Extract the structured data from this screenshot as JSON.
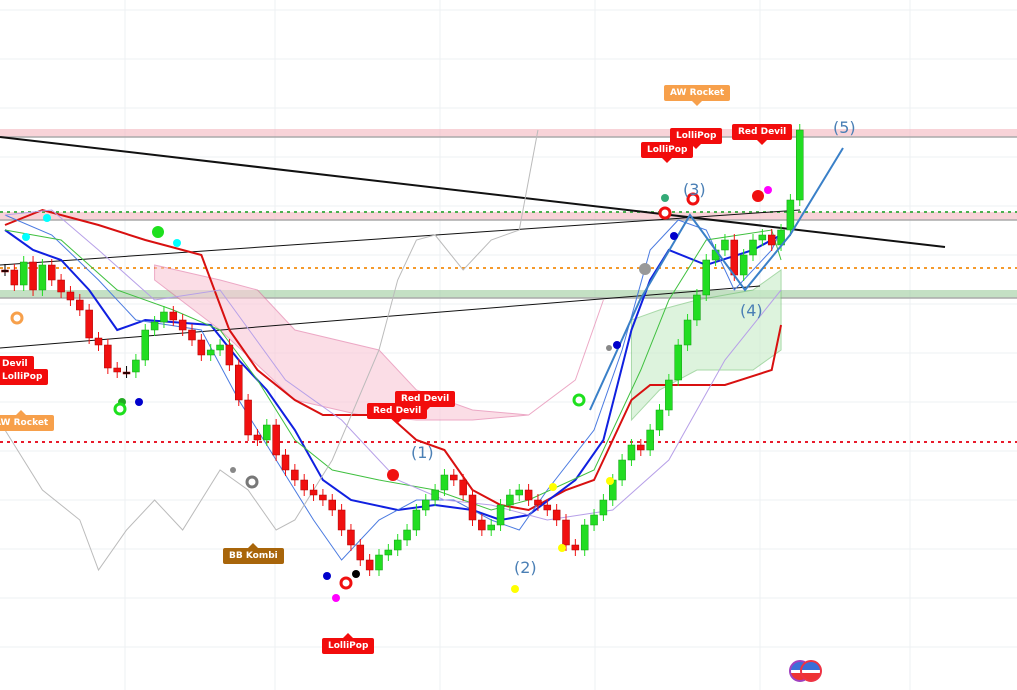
{
  "chart_data": {
    "type": "candlestick",
    "xlabel": "",
    "ylabel": "",
    "grid": true,
    "first_open": 430,
    "closes": [
      430,
      415,
      438,
      410,
      435,
      420,
      408,
      400,
      390,
      362,
      355,
      332,
      328,
      328,
      340,
      370,
      378,
      388,
      380,
      370,
      360,
      345,
      350,
      355,
      335,
      300,
      265,
      260,
      275,
      245,
      230,
      220,
      210,
      205,
      200,
      190,
      170,
      155,
      140,
      130,
      145,
      150,
      160,
      170,
      190,
      200,
      210,
      225,
      220,
      205,
      180,
      170,
      175,
      195,
      205,
      210,
      200,
      195,
      190,
      180,
      155,
      150,
      175,
      185,
      200,
      220,
      240,
      255,
      250,
      270,
      290,
      320,
      355,
      380,
      405,
      440,
      450,
      460,
      425,
      445,
      460,
      465,
      455,
      470,
      500,
      570
    ],
    "series": [
      {
        "color": "#d81010",
        "points": [
          [
            0,
            475
          ],
          [
            4,
            490
          ],
          [
            10,
            475
          ],
          [
            15,
            460
          ],
          [
            21,
            445
          ],
          [
            24,
            370
          ],
          [
            27,
            330
          ],
          [
            31,
            300
          ],
          [
            34,
            285
          ],
          [
            41,
            285
          ],
          [
            44,
            260
          ],
          [
            47,
            250
          ],
          [
            50,
            210
          ],
          [
            53,
            195
          ],
          [
            56,
            190
          ],
          [
            60,
            210
          ],
          [
            63,
            220
          ],
          [
            65,
            260
          ],
          [
            67,
            300
          ],
          [
            69,
            315
          ],
          [
            77,
            315
          ],
          [
            82,
            330
          ],
          [
            83,
            375
          ]
        ]
      },
      {
        "color": "#1020e0",
        "points": [
          [
            0,
            470
          ],
          [
            3,
            450
          ],
          [
            6,
            440
          ],
          [
            9,
            410
          ],
          [
            12,
            370
          ],
          [
            15,
            380
          ],
          [
            22,
            375
          ],
          [
            25,
            340
          ],
          [
            28,
            310
          ],
          [
            31,
            270
          ],
          [
            34,
            220
          ],
          [
            37,
            200
          ],
          [
            42,
            190
          ],
          [
            46,
            195
          ],
          [
            50,
            190
          ],
          [
            53,
            180
          ],
          [
            56,
            185
          ],
          [
            61,
            220
          ],
          [
            64,
            260
          ],
          [
            67,
            370
          ],
          [
            69,
            420
          ],
          [
            71,
            450
          ],
          [
            75,
            435
          ],
          [
            80,
            450
          ],
          [
            83,
            465
          ]
        ]
      },
      {
        "color": "#4a7ae0",
        "points": [
          [
            0,
            485
          ],
          [
            5,
            465
          ],
          [
            10,
            420
          ],
          [
            14,
            380
          ],
          [
            21,
            370
          ],
          [
            25,
            300
          ],
          [
            29,
            240
          ],
          [
            33,
            180
          ],
          [
            36,
            140
          ],
          [
            40,
            180
          ],
          [
            44,
            200
          ],
          [
            48,
            200
          ],
          [
            52,
            180
          ],
          [
            55,
            170
          ],
          [
            58,
            210
          ],
          [
            63,
            270
          ],
          [
            66,
            350
          ],
          [
            69,
            450
          ],
          [
            72,
            480
          ],
          [
            75,
            470
          ],
          [
            78,
            410
          ],
          [
            82,
            450
          ],
          [
            83,
            470
          ]
        ]
      },
      {
        "color": "#40c040",
        "points": [
          [
            0,
            470
          ],
          [
            6,
            460
          ],
          [
            12,
            410
          ],
          [
            18,
            390
          ],
          [
            23,
            370
          ],
          [
            27,
            320
          ],
          [
            31,
            260
          ],
          [
            35,
            230
          ],
          [
            40,
            220
          ],
          [
            46,
            210
          ],
          [
            52,
            190
          ],
          [
            56,
            200
          ],
          [
            63,
            230
          ],
          [
            65,
            270
          ],
          [
            68,
            330
          ],
          [
            71,
            400
          ],
          [
            75,
            460
          ],
          [
            82,
            470
          ],
          [
            83,
            440
          ]
        ]
      },
      {
        "color": "#b7a0e8",
        "points": [
          [
            0,
            485
          ],
          [
            5,
            490
          ],
          [
            10,
            450
          ],
          [
            16,
            400
          ],
          [
            23,
            410
          ],
          [
            30,
            320
          ],
          [
            36,
            280
          ],
          [
            42,
            220
          ],
          [
            47,
            200
          ],
          [
            52,
            195
          ],
          [
            58,
            180
          ],
          [
            65,
            190
          ],
          [
            71,
            240
          ],
          [
            77,
            340
          ],
          [
            83,
            410
          ]
        ]
      },
      {
        "color": "#bbbbbb",
        "points": [
          [
            0,
            270
          ],
          [
            4,
            210
          ],
          [
            8,
            180
          ],
          [
            10,
            130
          ],
          [
            13,
            170
          ],
          [
            16,
            200
          ],
          [
            19,
            170
          ],
          [
            23,
            230
          ],
          [
            26,
            210
          ],
          [
            29,
            170
          ],
          [
            31,
            180
          ],
          [
            35,
            240
          ],
          [
            40,
            350
          ],
          [
            42,
            420
          ],
          [
            44,
            460
          ],
          [
            46,
            465
          ],
          [
            49,
            430
          ],
          [
            52,
            460
          ],
          [
            55,
            470
          ],
          [
            57,
            570
          ]
        ]
      }
    ],
    "cloud_red": {
      "upper": [
        [
          16,
          435
        ],
        [
          23,
          420
        ],
        [
          27,
          410
        ],
        [
          31,
          370
        ],
        [
          40,
          350
        ],
        [
          44,
          310
        ],
        [
          50,
          290
        ],
        [
          56,
          285
        ],
        [
          61,
          320
        ],
        [
          64,
          400
        ]
      ],
      "lower": [
        [
          64,
          400
        ],
        [
          61,
          320
        ],
        [
          56,
          285
        ],
        [
          50,
          280
        ],
        [
          44,
          280
        ],
        [
          38,
          285
        ],
        [
          31,
          300
        ],
        [
          23,
          370
        ],
        [
          16,
          420
        ]
      ]
    },
    "cloud_green": {
      "upper": [
        [
          67,
          380
        ],
        [
          70,
          390
        ],
        [
          74,
          400
        ],
        [
          80,
          410
        ],
        [
          83,
          430
        ]
      ],
      "lower": [
        [
          83,
          350
        ],
        [
          80,
          330
        ],
        [
          74,
          330
        ],
        [
          70,
          310
        ],
        [
          67,
          280
        ]
      ]
    },
    "levels": [
      {
        "price": 567,
        "color": "#f4b6be",
        "style": "band"
      },
      {
        "price": 484,
        "color": "#f4b6be",
        "style": "band"
      },
      {
        "price": 488,
        "color": "#4caf50",
        "style": "dotted"
      },
      {
        "price": 432,
        "color": "#f59a2c",
        "style": "dotted"
      },
      {
        "price": 406,
        "color": "#9ccc9c",
        "style": "band"
      },
      {
        "price": 258,
        "color": "#e81c2c",
        "style": "dotted"
      }
    ],
    "labels": [
      {
        "text": "AW Rocket",
        "color": "orange"
      },
      {
        "text": "LolliPop",
        "color": "red"
      },
      {
        "text": "LolliPop",
        "color": "red"
      },
      {
        "text": "Red Devil",
        "color": "red"
      },
      {
        "text": "Red Devil",
        "color": "red"
      },
      {
        "text": "Red Devil",
        "color": "red"
      },
      {
        "text": "LolliPop",
        "color": "red"
      },
      {
        "text": "BB Kombi",
        "color": "brown"
      },
      {
        "text": "Devil",
        "color": "red"
      },
      {
        "text": "LolliPop",
        "color": "red"
      },
      {
        "text": "AW Rocket",
        "color": "orange"
      }
    ],
    "waves": [
      "(1)",
      "(2)",
      "(3)",
      "(4)",
      "(5)"
    ],
    "colors": {
      "up": "#22dd22",
      "down": "#f01010",
      "doji": "#000000"
    }
  }
}
